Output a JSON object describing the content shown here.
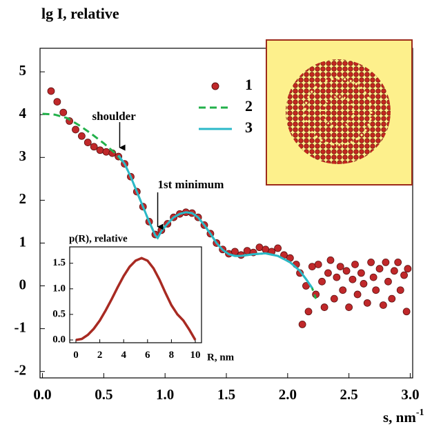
{
  "chart_data": [
    {
      "type": "line",
      "y_label": "lg I, relative",
      "x_label": "s, nm",
      "x_label_sup": "-1",
      "xlim": [
        -0.02,
        3.02
      ],
      "ylim": [
        -2.15,
        5.55
      ],
      "xticks": [
        {
          "value": 0,
          "label": "0.0"
        },
        0.5,
        {
          "value": 1,
          "label": "1.0"
        },
        1.5,
        {
          "value": 2,
          "label": "2.0"
        },
        2.5,
        {
          "value": 3,
          "label": "3.0"
        }
      ],
      "yticks": [
        -2,
        -1,
        0,
        1,
        2,
        3,
        4,
        5
      ],
      "annotations": [
        {
          "text": "shoulder",
          "x": 0.63,
          "y": 3.1
        },
        {
          "text": "1st minimum",
          "x": 0.94,
          "y": 1.25
        }
      ],
      "series": [
        {
          "name": "1",
          "color": "#c0282a",
          "marker": "circle",
          "x": [
            0.07,
            0.12,
            0.17,
            0.22,
            0.27,
            0.32,
            0.37,
            0.42,
            0.47,
            0.52,
            0.57,
            0.62,
            0.67,
            0.72,
            0.77,
            0.82,
            0.87,
            0.92,
            0.97,
            1.02,
            1.07,
            1.12,
            1.17,
            1.22,
            1.27,
            1.32,
            1.37,
            1.42,
            1.47,
            1.52,
            1.57,
            1.62,
            1.67,
            1.72,
            1.77,
            1.82,
            1.87,
            1.92,
            1.97,
            2.02,
            2.07,
            2.1,
            2.12,
            2.15,
            2.17,
            2.2,
            2.23,
            2.25,
            2.28,
            2.3,
            2.33,
            2.35,
            2.38,
            2.4,
            2.43,
            2.45,
            2.48,
            2.5,
            2.53,
            2.55,
            2.57,
            2.6,
            2.62,
            2.65,
            2.68,
            2.7,
            2.72,
            2.75,
            2.78,
            2.8,
            2.82,
            2.85,
            2.87,
            2.9,
            2.92,
            2.95,
            2.97,
            2.98
          ],
          "values": [
            4.55,
            4.3,
            4.05,
            3.85,
            3.65,
            3.5,
            3.35,
            3.25,
            3.17,
            3.13,
            3.1,
            3.02,
            2.85,
            2.55,
            2.2,
            1.85,
            1.5,
            1.2,
            1.3,
            1.45,
            1.6,
            1.68,
            1.72,
            1.7,
            1.6,
            1.42,
            1.22,
            1.0,
            0.85,
            0.75,
            0.8,
            0.72,
            0.82,
            0.78,
            0.9,
            0.85,
            0.8,
            0.88,
            0.72,
            0.65,
            0.5,
            0.3,
            -0.9,
            0.0,
            -0.6,
            0.45,
            -0.2,
            0.5,
            0.1,
            -0.5,
            0.3,
            0.6,
            -0.3,
            0.2,
            0.45,
            -0.1,
            0.35,
            -0.5,
            0.15,
            0.5,
            -0.2,
            0.3,
            0.05,
            -0.4,
            0.55,
            0.2,
            -0.1,
            0.4,
            -0.45,
            0.55,
            0.1,
            -0.3,
            0.35,
            0.55,
            -0.1,
            0.25,
            -0.6,
            0.4
          ]
        },
        {
          "name": "2",
          "color": "#22b04a",
          "dash": true,
          "x": [
            0.0,
            0.1,
            0.2,
            0.3,
            0.4,
            0.5,
            0.6,
            0.67,
            0.72,
            0.77,
            0.82,
            0.87,
            0.92,
            0.94,
            0.97,
            1.02,
            1.07,
            1.12,
            1.17,
            1.22,
            1.27,
            1.32,
            1.37,
            1.42,
            1.47,
            1.52,
            1.57,
            1.62,
            1.72,
            1.82,
            1.92,
            2.02,
            2.1,
            2.16,
            2.2,
            2.23
          ],
          "values": [
            4.02,
            4.0,
            3.92,
            3.75,
            3.55,
            3.33,
            3.08,
            2.85,
            2.55,
            2.2,
            1.85,
            1.5,
            1.18,
            1.12,
            1.28,
            1.45,
            1.6,
            1.68,
            1.72,
            1.7,
            1.6,
            1.42,
            1.22,
            1.0,
            0.84,
            0.74,
            0.7,
            0.7,
            0.74,
            0.76,
            0.7,
            0.55,
            0.35,
            0.12,
            -0.05,
            -0.3
          ]
        },
        {
          "name": "3",
          "color": "#2ab8c8",
          "x": [
            0.62,
            0.67,
            0.72,
            0.77,
            0.82,
            0.87,
            0.92,
            0.94,
            0.97,
            1.02,
            1.07,
            1.12,
            1.17,
            1.22,
            1.27,
            1.32,
            1.37,
            1.42,
            1.47,
            1.52,
            1.57,
            1.62,
            1.72,
            1.82,
            1.92,
            2.02,
            2.1,
            2.16,
            2.2
          ],
          "values": [
            3.05,
            2.85,
            2.55,
            2.2,
            1.85,
            1.5,
            1.18,
            1.12,
            1.28,
            1.45,
            1.6,
            1.68,
            1.72,
            1.7,
            1.6,
            1.42,
            1.22,
            1.0,
            0.84,
            0.74,
            0.7,
            0.7,
            0.74,
            0.76,
            0.7,
            0.55,
            0.35,
            0.12,
            -0.05
          ]
        }
      ]
    },
    {
      "type": "line",
      "title": "p(R), relative",
      "x_label": "R, nm",
      "xlim": [
        -0.52,
        10.52
      ],
      "ylim": [
        -0.054,
        1.82
      ],
      "xticks": [
        0,
        2,
        4,
        6,
        8,
        10
      ],
      "yticks": [
        {
          "value": 0,
          "label": "0.0"
        },
        0.5,
        {
          "value": 1,
          "label": "1.0"
        },
        1.5
      ],
      "series": [
        {
          "color": "#a82a22",
          "x": [
            0,
            0.5,
            1,
            1.5,
            2,
            2.5,
            3,
            3.5,
            4,
            4.5,
            5,
            5.5,
            6,
            6.5,
            7,
            7.5,
            8,
            8.5,
            9,
            9.5,
            10
          ],
          "values": [
            0,
            0.02,
            0.1,
            0.22,
            0.38,
            0.58,
            0.8,
            1.03,
            1.25,
            1.43,
            1.55,
            1.6,
            1.55,
            1.4,
            1.18,
            0.92,
            0.68,
            0.5,
            0.38,
            0.2,
            0.0
          ]
        }
      ]
    }
  ]
}
